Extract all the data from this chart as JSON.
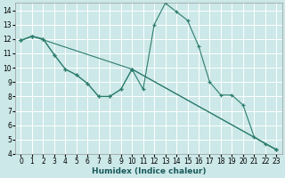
{
  "xlabel": "Humidex (Indice chaleur)",
  "bg_color": "#cce8e8",
  "grid_color": "#ffffff",
  "line_color": "#2d7d6e",
  "xlim": [
    -0.5,
    23.5
  ],
  "ylim": [
    4,
    14.5
  ],
  "xticks": [
    0,
    1,
    2,
    3,
    4,
    5,
    6,
    7,
    8,
    9,
    10,
    11,
    12,
    13,
    14,
    15,
    16,
    17,
    18,
    19,
    20,
    21,
    22,
    23
  ],
  "yticks": [
    4,
    5,
    6,
    7,
    8,
    9,
    10,
    11,
    12,
    13,
    14
  ],
  "line1_x": [
    0,
    1,
    2,
    3,
    4,
    5,
    6,
    7,
    8,
    9,
    10,
    11,
    12,
    13,
    14,
    15,
    16,
    17,
    18,
    19,
    20,
    21,
    22,
    23
  ],
  "line1_y": [
    11.9,
    12.2,
    12.0,
    10.9,
    9.9,
    9.5,
    8.9,
    8.0,
    8.0,
    8.5,
    9.9,
    8.5,
    13.0,
    14.5,
    13.9,
    13.3,
    11.5,
    9.0,
    8.1,
    8.1,
    7.4,
    5.2,
    4.7,
    4.3
  ],
  "line2_x": [
    0,
    1,
    10,
    23
  ],
  "line2_y": [
    11.9,
    12.2,
    9.9,
    4.3
  ],
  "line3_x": [
    0,
    1,
    2,
    3,
    4,
    5,
    6,
    7,
    8,
    9,
    10,
    23
  ],
  "line3_y": [
    11.9,
    12.2,
    12.0,
    10.9,
    9.9,
    9.5,
    8.9,
    8.0,
    8.0,
    8.5,
    9.9,
    4.3
  ]
}
